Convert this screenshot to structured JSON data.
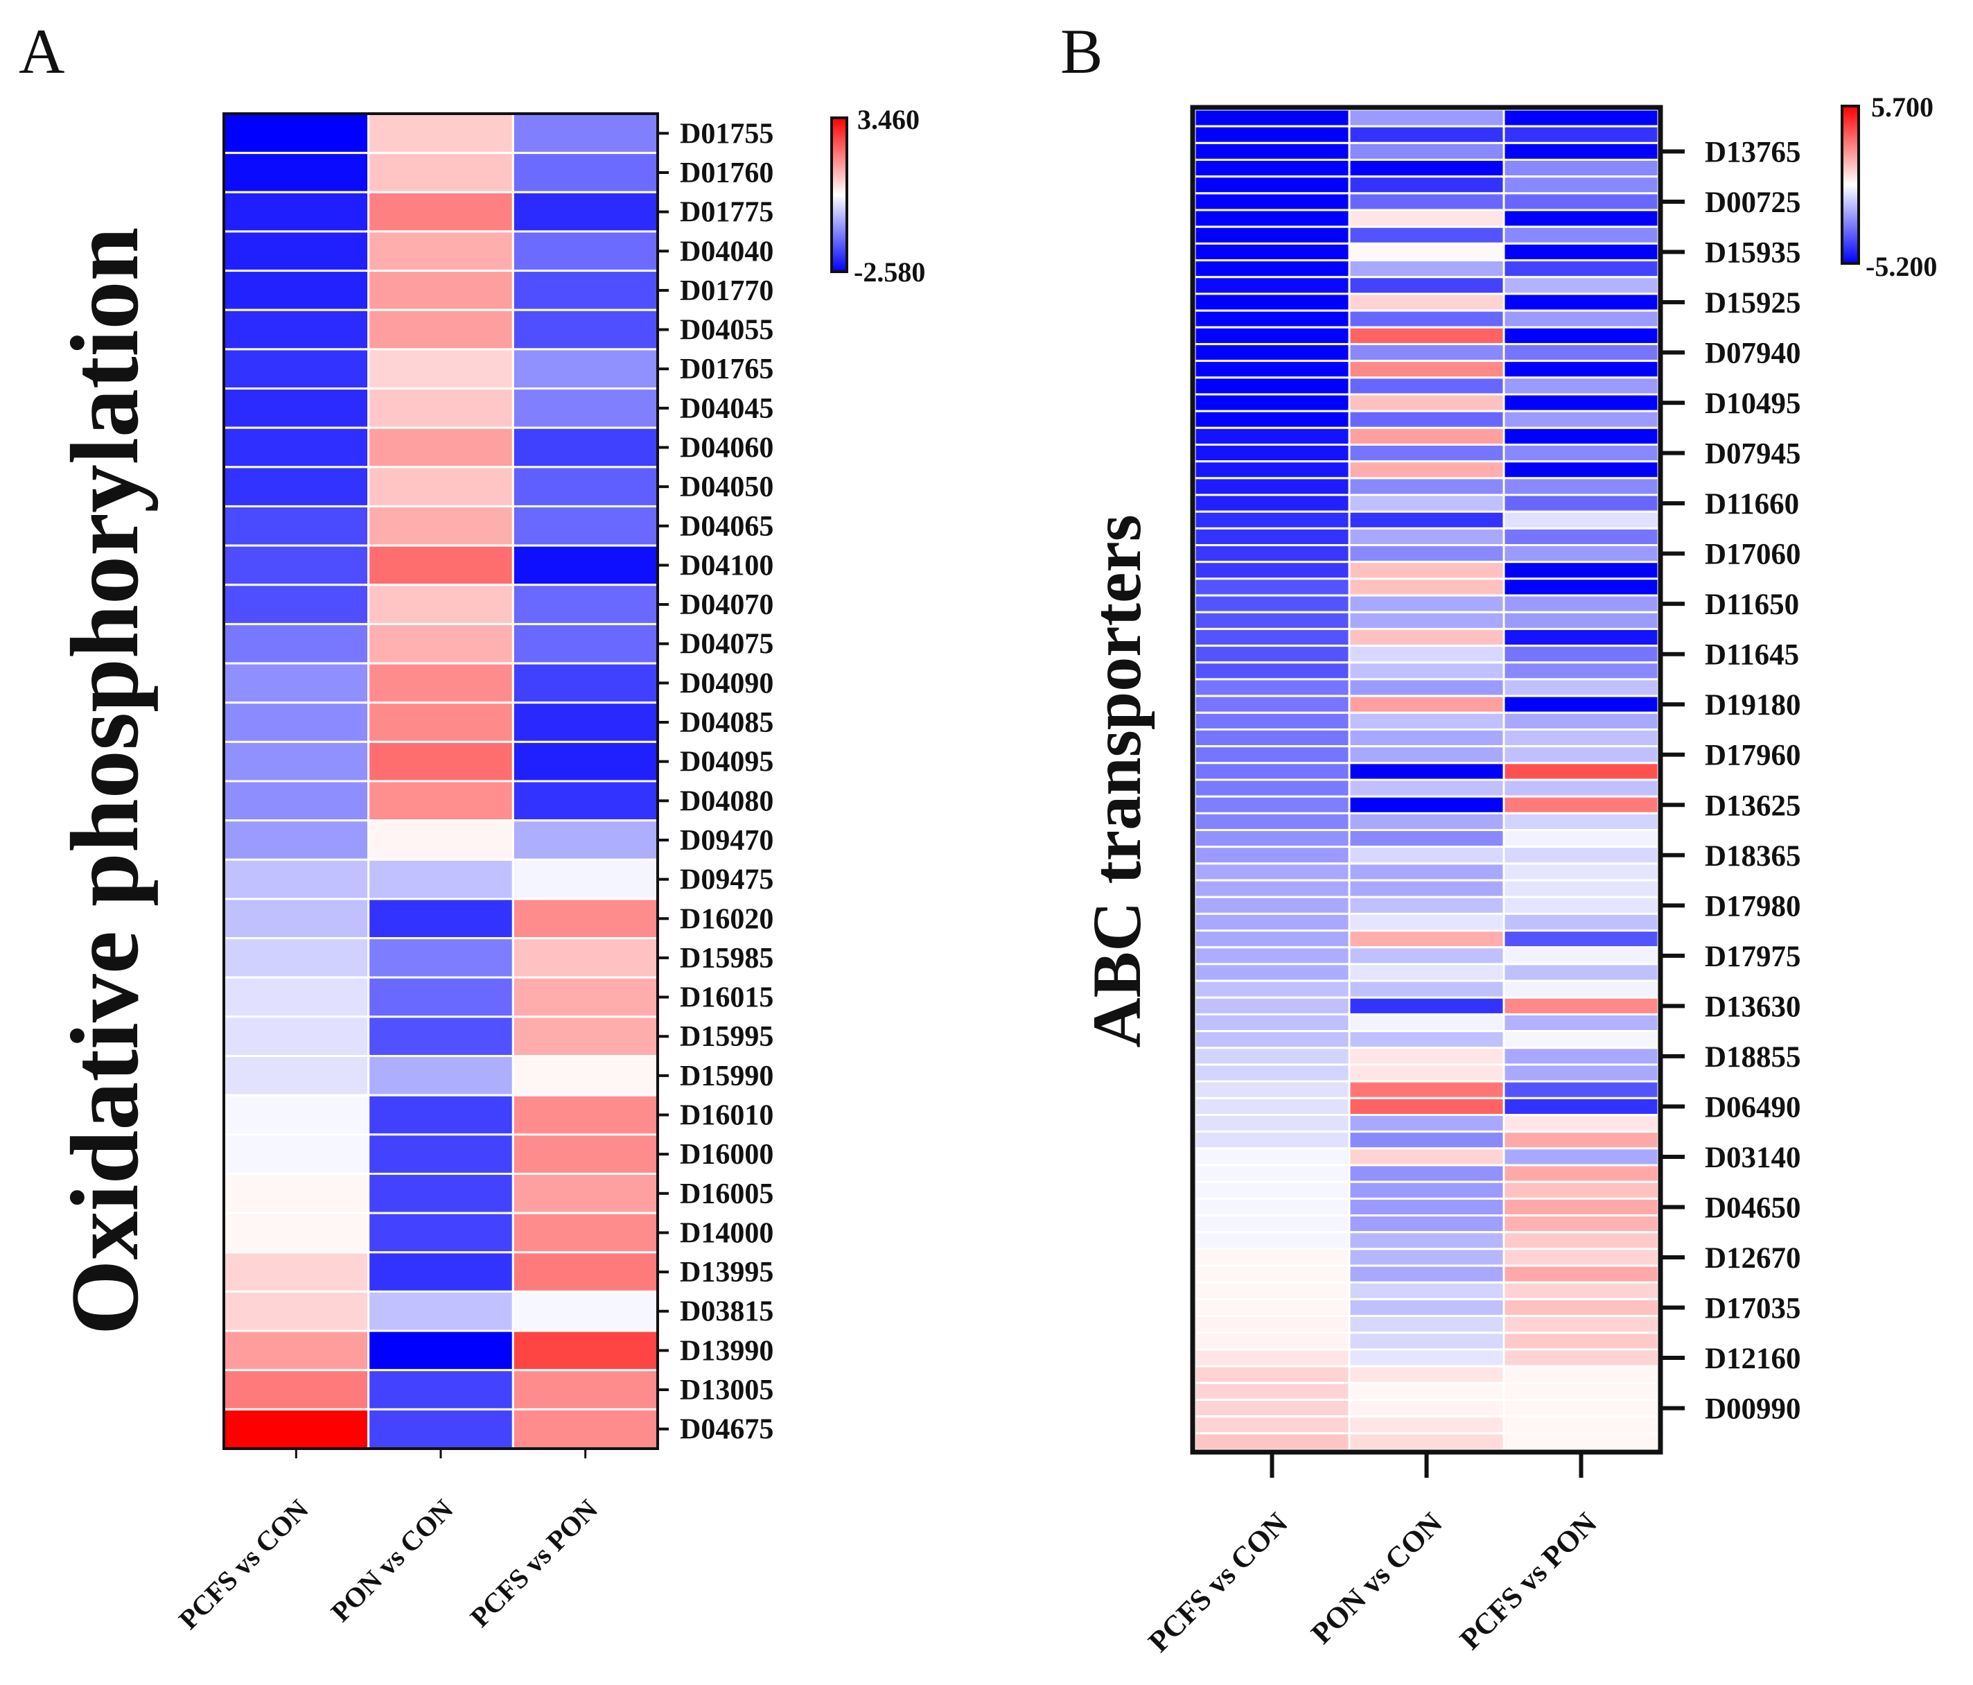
{
  "chart_data": [
    {
      "type": "heatmap",
      "panel_label": "A",
      "ylabel": "Oxidative phosphorylation",
      "columns": [
        "PCFS vs CON",
        "PON vs CON",
        "PCFS vs PON"
      ],
      "colorbar": {
        "min": -2.58,
        "max": 3.46,
        "min_label": "-2.580",
        "max_label": "3.460",
        "low_color": "#0000ff",
        "mid_color": "#ffffff",
        "high_color": "#ff0000"
      },
      "rows": [
        "D01755",
        "D01760",
        "D01775",
        "D04040",
        "D01770",
        "D04055",
        "D01765",
        "D04045",
        "D04060",
        "D04050",
        "D04065",
        "D04100",
        "D04070",
        "D04075",
        "D04090",
        "D04085",
        "D04095",
        "D04080",
        "D09470",
        "D09475",
        "D16020",
        "D15985",
        "D16015",
        "D15995",
        "D15990",
        "D16010",
        "D16000",
        "D16005",
        "D14000",
        "D13995",
        "D03815",
        "D13990",
        "D13005",
        "D04675"
      ],
      "values": [
        [
          -2.58,
          1.04,
          -1.07
        ],
        [
          -2.46,
          1.13,
          -1.31
        ],
        [
          -2.22,
          1.95,
          -2.07
        ],
        [
          -2.2,
          1.4,
          -1.31
        ],
        [
          -2.18,
          1.59,
          -1.64
        ],
        [
          -2.07,
          1.59,
          -1.64
        ],
        [
          -1.98,
          0.95,
          -0.88
        ],
        [
          -2.07,
          1.1,
          -1.07
        ],
        [
          -2.02,
          1.57,
          -1.82
        ],
        [
          -1.98,
          1.13,
          -1.45
        ],
        [
          -1.7,
          1.4,
          -1.34
        ],
        [
          -1.66,
          2.16,
          -2.4
        ],
        [
          -1.64,
          1.13,
          -1.34
        ],
        [
          -1.16,
          1.38,
          -1.34
        ],
        [
          -0.89,
          1.8,
          -1.82
        ],
        [
          -0.93,
          1.82,
          -2.1
        ],
        [
          -0.88,
          2.16,
          -2.2
        ],
        [
          -0.9,
          1.78,
          -1.98
        ],
        [
          -0.74,
          0.56,
          -0.52
        ],
        [
          -0.3,
          -0.3,
          0.32
        ],
        [
          -0.31,
          -1.98,
          1.8
        ],
        [
          -0.1,
          -1.1,
          1.18
        ],
        [
          0.08,
          -1.34,
          1.42
        ],
        [
          0.08,
          -1.62,
          1.42
        ],
        [
          0.1,
          -0.52,
          0.55
        ],
        [
          0.34,
          -1.82,
          1.8
        ],
        [
          0.34,
          -1.8,
          1.8
        ],
        [
          0.55,
          -1.8,
          1.57
        ],
        [
          0.55,
          -1.8,
          1.8
        ],
        [
          0.95,
          -1.98,
          2.0
        ],
        [
          0.95,
          -0.3,
          0.34
        ],
        [
          1.6,
          -2.58,
          2.66
        ],
        [
          2.0,
          -1.8,
          1.8
        ],
        [
          3.46,
          -1.78,
          1.8
        ]
      ]
    },
    {
      "type": "heatmap",
      "panel_label": "B",
      "ylabel": "ABC transporters",
      "columns": [
        "PCFS vs CON",
        "PON vs CON",
        "PCFS vs PON"
      ],
      "colorbar": {
        "min": -5.2,
        "max": 5.7,
        "min_label": "-5.200",
        "max_label": "5.700",
        "low_color": "#0000ff",
        "mid_color": "#ffffff",
        "high_color": "#ff0000"
      },
      "tick_labels": [
        "D13765",
        "D00725",
        "D15935",
        "D15925",
        "D07940",
        "D10495",
        "D07945",
        "D11660",
        "D17060",
        "D11650",
        "D11645",
        "D19180",
        "D17960",
        "D13625",
        "D18365",
        "D17980",
        "D17975",
        "D13630",
        "D18855",
        "D06490",
        "D03140",
        "D04650",
        "D12670",
        "D17035",
        "D12160",
        "D00990"
      ],
      "tick_every_rows": 3,
      "values": [
        [
          -5.2,
          -1.9,
          -5.2
        ],
        [
          -5.2,
          -4.1,
          -4.1
        ],
        [
          -5.2,
          -2.3,
          -5.2
        ],
        [
          -5.2,
          -5.2,
          -2.3
        ],
        [
          -5.2,
          -4.1,
          -2.3
        ],
        [
          -5.2,
          -3.0,
          -3.0
        ],
        [
          -5.2,
          0.8,
          -5.2
        ],
        [
          -5.2,
          -3.4,
          -2.3
        ],
        [
          -5.2,
          0.4,
          -5.2
        ],
        [
          -5.2,
          -1.6,
          -3.8
        ],
        [
          -5.0,
          -3.8,
          -1.4
        ],
        [
          -5.2,
          1.2,
          -5.2
        ],
        [
          -5.2,
          -3.0,
          -1.9
        ],
        [
          -5.2,
          3.6,
          -5.2
        ],
        [
          -5.2,
          -2.3,
          -2.7
        ],
        [
          -5.2,
          2.8,
          -5.2
        ],
        [
          -5.2,
          -3.0,
          -1.9
        ],
        [
          -5.2,
          1.6,
          -5.2
        ],
        [
          -5.2,
          -3.0,
          -1.9
        ],
        [
          -4.8,
          2.3,
          -5.2
        ],
        [
          -4.8,
          -2.7,
          -2.3
        ],
        [
          -4.7,
          2.0,
          -5.2
        ],
        [
          -4.6,
          -2.3,
          -2.3
        ],
        [
          -4.5,
          -1.1,
          -3.0
        ],
        [
          -4.2,
          -4.1,
          -0.4
        ],
        [
          -4.1,
          -1.6,
          -2.7
        ],
        [
          -4.0,
          -2.3,
          -1.9
        ],
        [
          -4.0,
          1.6,
          -5.2
        ],
        [
          -3.4,
          1.6,
          -5.2
        ],
        [
          -3.4,
          -1.6,
          -1.9
        ],
        [
          -3.4,
          -1.6,
          -1.9
        ],
        [
          -3.4,
          1.6,
          -4.8
        ],
        [
          -3.4,
          -0.6,
          -2.7
        ],
        [
          -3.4,
          -1.1,
          -2.3
        ],
        [
          -2.7,
          -1.9,
          -1.1
        ],
        [
          -2.7,
          2.3,
          -5.2
        ],
        [
          -2.7,
          -1.1,
          -1.6
        ],
        [
          -2.7,
          -1.6,
          -1.1
        ],
        [
          -2.7,
          -1.6,
          -1.1
        ],
        [
          -2.7,
          -5.2,
          4.0
        ],
        [
          -2.6,
          -1.1,
          -1.1
        ],
        [
          -2.5,
          -5.2,
          3.1
        ],
        [
          -2.4,
          -1.6,
          -0.7
        ],
        [
          -2.1,
          -2.3,
          0.0
        ],
        [
          -1.9,
          -0.6,
          -0.6
        ],
        [
          -1.6,
          -1.6,
          -0.3
        ],
        [
          -1.6,
          -1.6,
          -0.3
        ],
        [
          -1.6,
          -1.1,
          -0.3
        ],
        [
          -1.6,
          -0.3,
          -1.1
        ],
        [
          -1.6,
          2.0,
          -3.4
        ],
        [
          -1.5,
          -1.1,
          0.0
        ],
        [
          -1.5,
          -0.3,
          -1.1
        ],
        [
          -1.1,
          -1.1,
          0.0
        ],
        [
          -1.1,
          -4.1,
          2.8
        ],
        [
          -1.1,
          0.0,
          -1.4
        ],
        [
          -1.1,
          -1.1,
          0.05
        ],
        [
          -0.7,
          0.8,
          -1.6
        ],
        [
          -0.7,
          0.8,
          -1.6
        ],
        [
          -0.4,
          3.2,
          -3.4
        ],
        [
          -0.4,
          3.6,
          -4.1
        ],
        [
          -0.4,
          -1.6,
          0.8
        ],
        [
          -0.4,
          -2.3,
          2.1
        ],
        [
          0.05,
          1.2,
          -1.6
        ],
        [
          0.05,
          -2.1,
          2.1
        ],
        [
          0.05,
          -1.9,
          1.6
        ],
        [
          0.05,
          -1.9,
          2.1
        ],
        [
          0.05,
          -1.8,
          1.9
        ],
        [
          0.05,
          -1.3,
          1.4
        ],
        [
          0.45,
          -1.3,
          1.2
        ],
        [
          0.45,
          -1.6,
          2.1
        ],
        [
          0.45,
          -0.7,
          1.2
        ],
        [
          0.45,
          -1.1,
          1.6
        ],
        [
          0.5,
          -0.6,
          1.2
        ],
        [
          0.5,
          -0.6,
          1.4
        ],
        [
          0.8,
          -0.3,
          1.2
        ],
        [
          1.2,
          0.8,
          0.45
        ],
        [
          1.2,
          0.45,
          0.45
        ],
        [
          1.2,
          0.5,
          0.45
        ],
        [
          1.2,
          0.8,
          0.45
        ],
        [
          1.5,
          1.0,
          0.45
        ]
      ]
    }
  ]
}
